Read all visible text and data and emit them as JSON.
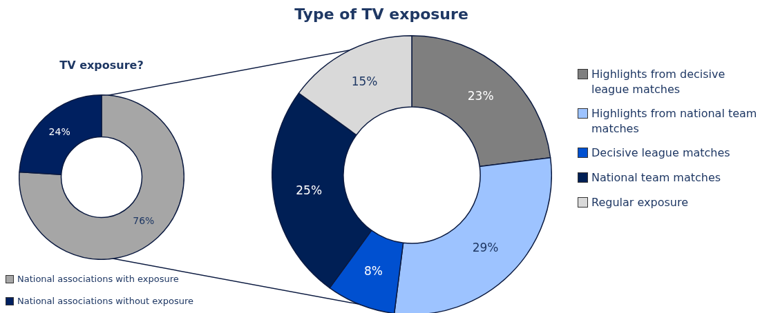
{
  "chart_data": [
    {
      "type": "donut",
      "title": "TV exposure?",
      "categories": [
        "National associations with exposure",
        "National associations without exposure"
      ],
      "values": [
        76,
        24
      ],
      "colors": [
        "#a6a6a6",
        "#002060"
      ],
      "value_labels": [
        "76%",
        "24%"
      ],
      "legend": "bottom left"
    },
    {
      "type": "donut",
      "title": "Type of TV exposure",
      "categories": [
        "Highlights from decisive league matches",
        "Highlights from national team matches",
        "Decisive league matches",
        "National team matches",
        "Regular exposure"
      ],
      "values": [
        23,
        29,
        8,
        25,
        15
      ],
      "colors": [
        "#7f7f7f",
        "#9dc3ff",
        "#0050d0",
        "#001f55",
        "#d9d9d9"
      ],
      "value_labels": [
        "23%",
        "29%",
        "8%",
        "25%",
        "15%"
      ],
      "legend": "right"
    }
  ]
}
